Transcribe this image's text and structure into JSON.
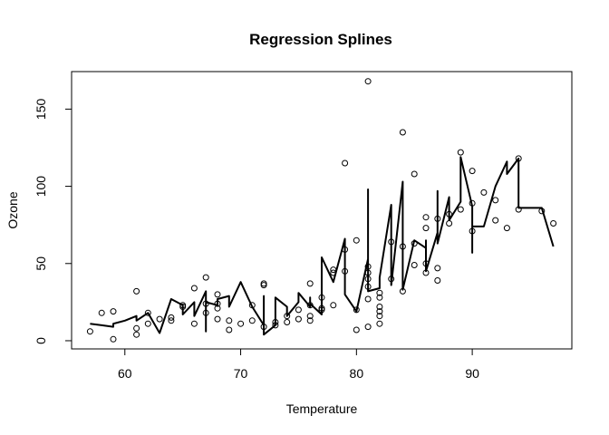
{
  "chart_data": {
    "type": "scatter",
    "title": "Regression Splines",
    "xlabel": "Temperature",
    "ylabel": "Ozone",
    "xlim": [
      55.4,
      98.6
    ],
    "ylim": [
      -5.3,
      174.3
    ],
    "xticks": [
      60,
      70,
      80,
      90
    ],
    "yticks": [
      0,
      50,
      100,
      150
    ],
    "grid": false,
    "colors": {
      "points": "#000000",
      "line": "#000000",
      "frame": "#000000"
    },
    "points": [
      [
        57,
        6
      ],
      [
        58,
        18
      ],
      [
        59,
        19
      ],
      [
        59,
        1
      ],
      [
        61,
        32
      ],
      [
        61,
        4
      ],
      [
        61,
        8
      ],
      [
        62,
        18
      ],
      [
        62,
        11
      ],
      [
        63,
        14
      ],
      [
        64,
        13
      ],
      [
        64,
        15
      ],
      [
        65,
        22
      ],
      [
        65,
        23
      ],
      [
        66,
        11
      ],
      [
        66,
        34
      ],
      [
        67,
        41
      ],
      [
        67,
        24
      ],
      [
        67,
        18
      ],
      [
        68,
        21
      ],
      [
        68,
        30
      ],
      [
        68,
        14
      ],
      [
        68,
        24
      ],
      [
        69,
        7
      ],
      [
        69,
        13
      ],
      [
        70,
        11
      ],
      [
        71,
        23
      ],
      [
        71,
        13
      ],
      [
        72,
        36
      ],
      [
        72,
        37
      ],
      [
        72,
        9
      ],
      [
        73,
        12
      ],
      [
        73,
        10
      ],
      [
        74,
        16
      ],
      [
        74,
        12
      ],
      [
        75,
        14
      ],
      [
        75,
        20
      ],
      [
        76,
        37
      ],
      [
        76,
        13
      ],
      [
        76,
        16
      ],
      [
        76,
        23
      ],
      [
        77,
        28
      ],
      [
        77,
        21
      ],
      [
        77,
        20
      ],
      [
        78,
        44
      ],
      [
        78,
        46
      ],
      [
        78,
        23
      ],
      [
        79,
        59
      ],
      [
        79,
        45
      ],
      [
        79,
        115
      ],
      [
        80,
        20
      ],
      [
        80,
        65
      ],
      [
        80,
        7
      ],
      [
        81,
        168
      ],
      [
        81,
        48
      ],
      [
        81,
        44
      ],
      [
        81,
        40
      ],
      [
        81,
        35
      ],
      [
        81,
        9
      ],
      [
        81,
        27
      ],
      [
        82,
        28
      ],
      [
        82,
        22
      ],
      [
        82,
        16
      ],
      [
        82,
        31
      ],
      [
        82,
        19
      ],
      [
        82,
        11
      ],
      [
        83,
        64
      ],
      [
        83,
        40
      ],
      [
        84,
        135
      ],
      [
        84,
        32
      ],
      [
        84,
        61
      ],
      [
        85,
        108
      ],
      [
        85,
        49
      ],
      [
        85,
        63
      ],
      [
        86,
        80
      ],
      [
        86,
        73
      ],
      [
        86,
        44
      ],
      [
        86,
        50
      ],
      [
        87,
        47
      ],
      [
        87,
        39
      ],
      [
        87,
        79
      ],
      [
        88,
        82
      ],
      [
        88,
        76
      ],
      [
        89,
        122
      ],
      [
        89,
        85
      ],
      [
        90,
        110
      ],
      [
        90,
        89
      ],
      [
        90,
        71
      ],
      [
        91,
        96
      ],
      [
        92,
        91
      ],
      [
        92,
        78
      ],
      [
        93,
        73
      ],
      [
        94,
        118
      ],
      [
        94,
        85
      ],
      [
        96,
        84
      ],
      [
        97,
        76
      ]
    ],
    "fit": [
      [
        57,
        11
      ],
      [
        58,
        10
      ],
      [
        59,
        9
      ],
      [
        59,
        11
      ],
      [
        60,
        13
      ],
      [
        61,
        16
      ],
      [
        61,
        13
      ],
      [
        62,
        18
      ],
      [
        63,
        5
      ],
      [
        64,
        27
      ],
      [
        65,
        23
      ],
      [
        65,
        17
      ],
      [
        66,
        25
      ],
      [
        66,
        16
      ],
      [
        67,
        32
      ],
      [
        67,
        6
      ],
      [
        67,
        25
      ],
      [
        68,
        23
      ],
      [
        68,
        27
      ],
      [
        69,
        29
      ],
      [
        69,
        22
      ],
      [
        70,
        38
      ],
      [
        71,
        22
      ],
      [
        72,
        10
      ],
      [
        72,
        29
      ],
      [
        72,
        4
      ],
      [
        73,
        10
      ],
      [
        73,
        28
      ],
      [
        74,
        22
      ],
      [
        74,
        16
      ],
      [
        75,
        25
      ],
      [
        75,
        31
      ],
      [
        76,
        22
      ],
      [
        76,
        28
      ],
      [
        76,
        24
      ],
      [
        77,
        17
      ],
      [
        77,
        54
      ],
      [
        78,
        38
      ],
      [
        79,
        66
      ],
      [
        79,
        30
      ],
      [
        80,
        19
      ],
      [
        81,
        53
      ],
      [
        81,
        98
      ],
      [
        81,
        32
      ],
      [
        82,
        34
      ],
      [
        82,
        41
      ],
      [
        83,
        88
      ],
      [
        83,
        36
      ],
      [
        84,
        103
      ],
      [
        84,
        33
      ],
      [
        85,
        65
      ],
      [
        86,
        60
      ],
      [
        86,
        65
      ],
      [
        86,
        45
      ],
      [
        87,
        70
      ],
      [
        87,
        97
      ],
      [
        87,
        63
      ],
      [
        88,
        93
      ],
      [
        88,
        78
      ],
      [
        89,
        90
      ],
      [
        89,
        119
      ],
      [
        90,
        87
      ],
      [
        90,
        57
      ],
      [
        90,
        74
      ],
      [
        91,
        74
      ],
      [
        92,
        100
      ],
      [
        93,
        116
      ],
      [
        93,
        108
      ],
      [
        94,
        118
      ],
      [
        94,
        86
      ],
      [
        95,
        86
      ],
      [
        96,
        86
      ],
      [
        97,
        61
      ]
    ]
  }
}
